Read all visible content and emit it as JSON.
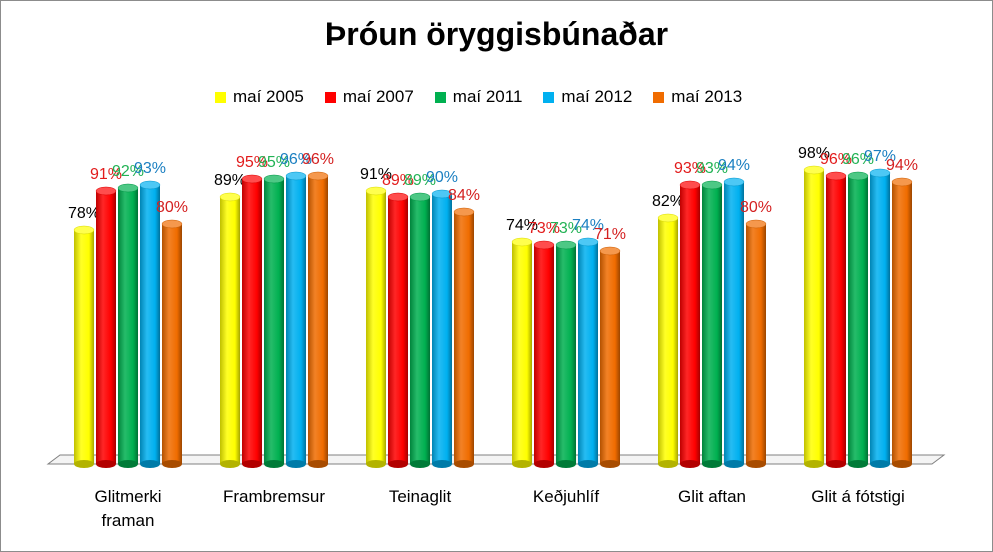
{
  "chart_data": {
    "type": "bar",
    "title": "Þróun öryggisbúnaðar",
    "xlabel": "",
    "ylabel": "",
    "ylim": [
      0,
      100
    ],
    "grid": false,
    "legend_position": "top",
    "categories": [
      "Glitmerki framan",
      "Frambremsur",
      "Teinaglit",
      "Keðjuhlíf",
      "Glit aftan",
      "Glit á fótstigi"
    ],
    "category_lines": [
      [
        "Glitmerki",
        "framan"
      ],
      [
        "Frambremsur"
      ],
      [
        "Teinaglit"
      ],
      [
        "Keðjuhlíf"
      ],
      [
        "Glit aftan"
      ],
      [
        "Glit á fótstigi"
      ]
    ],
    "series": [
      {
        "name": "maí 2005",
        "color": "#ffff00",
        "label_color": "#000000",
        "values": [
          78,
          89,
          91,
          74,
          82,
          98
        ],
        "labels": [
          "78%",
          "89%",
          "91%",
          "74%",
          "82%",
          "98%"
        ]
      },
      {
        "name": "maí 2007",
        "color": "#ff0000",
        "label_color": "#e21b1b",
        "values": [
          91,
          95,
          89,
          73,
          93,
          96
        ],
        "labels": [
          "91%",
          "95%",
          "89%",
          "73%",
          "93%",
          "96%"
        ]
      },
      {
        "name": "maí 2011",
        "color": "#00b050",
        "label_color": "#21b254",
        "values": [
          92,
          95,
          89,
          73,
          93,
          96
        ],
        "labels": [
          "92%",
          "95%",
          "89%",
          "73%",
          "93%",
          "96%"
        ]
      },
      {
        "name": "maí 2012",
        "color": "#00b0f0",
        "label_color": "#1a7fc1",
        "values": [
          93,
          96,
          90,
          74,
          94,
          97
        ],
        "labels": [
          "93%",
          "96%",
          "90%",
          "74%",
          "94%",
          "97%"
        ]
      },
      {
        "name": "maí 2013",
        "color": "#f06c00",
        "label_color": "#d42020",
        "values": [
          80,
          96,
          84,
          71,
          80,
          94
        ],
        "labels": [
          "80%",
          "96%",
          "84%",
          "71%",
          "80%",
          "94%"
        ]
      }
    ]
  }
}
